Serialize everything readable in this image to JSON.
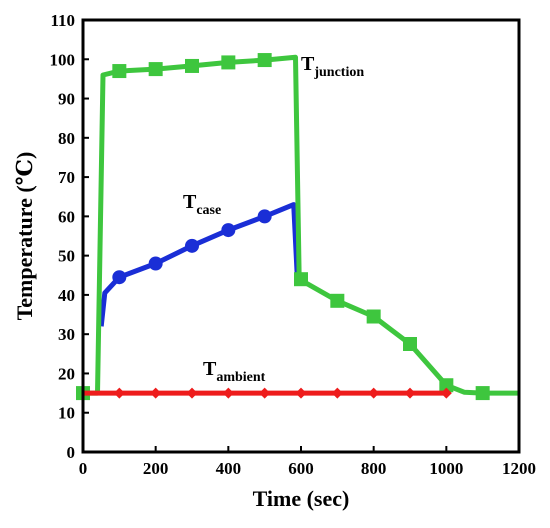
{
  "chart_data": {
    "type": "line",
    "xlabel": "Time (sec)",
    "ylabel": "Temperature (℃)",
    "xlim": [
      0,
      1200
    ],
    "ylim": [
      0,
      110
    ],
    "xticks": [
      0,
      200,
      400,
      600,
      800,
      1000,
      1200
    ],
    "yticks": [
      0,
      10,
      20,
      30,
      40,
      50,
      60,
      70,
      80,
      90,
      100,
      110
    ],
    "grid": false,
    "legend": "none (series labeled inline)",
    "series": [
      {
        "name": "junction",
        "label_main": "T",
        "label_sub": "junction",
        "color": "#3ec63e",
        "marker": "square",
        "line": [
          [
            0,
            15
          ],
          [
            40,
            15
          ],
          [
            55,
            96
          ],
          [
            100,
            97
          ],
          [
            200,
            97.5
          ],
          [
            300,
            98.3
          ],
          [
            400,
            99.2
          ],
          [
            500,
            99.8
          ],
          [
            585,
            100.5
          ],
          [
            595,
            44
          ],
          [
            700,
            38.5
          ],
          [
            800,
            34.5
          ],
          [
            850,
            31
          ],
          [
            900,
            27.5
          ],
          [
            1000,
            17
          ],
          [
            1050,
            15.2
          ],
          [
            1100,
            15
          ],
          [
            1200,
            15
          ]
        ],
        "markers": [
          [
            0,
            15
          ],
          [
            100,
            97
          ],
          [
            200,
            97.5
          ],
          [
            300,
            98.3
          ],
          [
            400,
            99.2
          ],
          [
            500,
            99.8
          ],
          [
            600,
            44
          ],
          [
            700,
            38.5
          ],
          [
            800,
            34.5
          ],
          [
            900,
            27.5
          ],
          [
            1000,
            17
          ],
          [
            1100,
            15
          ]
        ]
      },
      {
        "name": "case",
        "label_main": "T",
        "label_sub": "case",
        "color": "#1a2ed6",
        "marker": "circle",
        "line": [
          [
            50,
            32
          ],
          [
            60,
            40.5
          ],
          [
            100,
            44.5
          ],
          [
            200,
            48
          ],
          [
            300,
            52.5
          ],
          [
            400,
            56.5
          ],
          [
            500,
            60
          ],
          [
            580,
            63
          ],
          [
            590,
            44
          ]
        ],
        "markers": [
          [
            100,
            44.5
          ],
          [
            200,
            48
          ],
          [
            300,
            52.5
          ],
          [
            400,
            56.5
          ],
          [
            500,
            60
          ]
        ]
      },
      {
        "name": "ambient",
        "label_main": "T",
        "label_sub": "ambient",
        "color": "#ee1c1c",
        "marker": "diamond",
        "line": [
          [
            0,
            15
          ],
          [
            1000,
            15
          ]
        ],
        "markers": [
          [
            100,
            15
          ],
          [
            200,
            15
          ],
          [
            300,
            15
          ],
          [
            400,
            15
          ],
          [
            500,
            15
          ],
          [
            600,
            15
          ],
          [
            700,
            15
          ],
          [
            800,
            15
          ],
          [
            900,
            15
          ],
          [
            1000,
            15
          ]
        ]
      }
    ]
  }
}
